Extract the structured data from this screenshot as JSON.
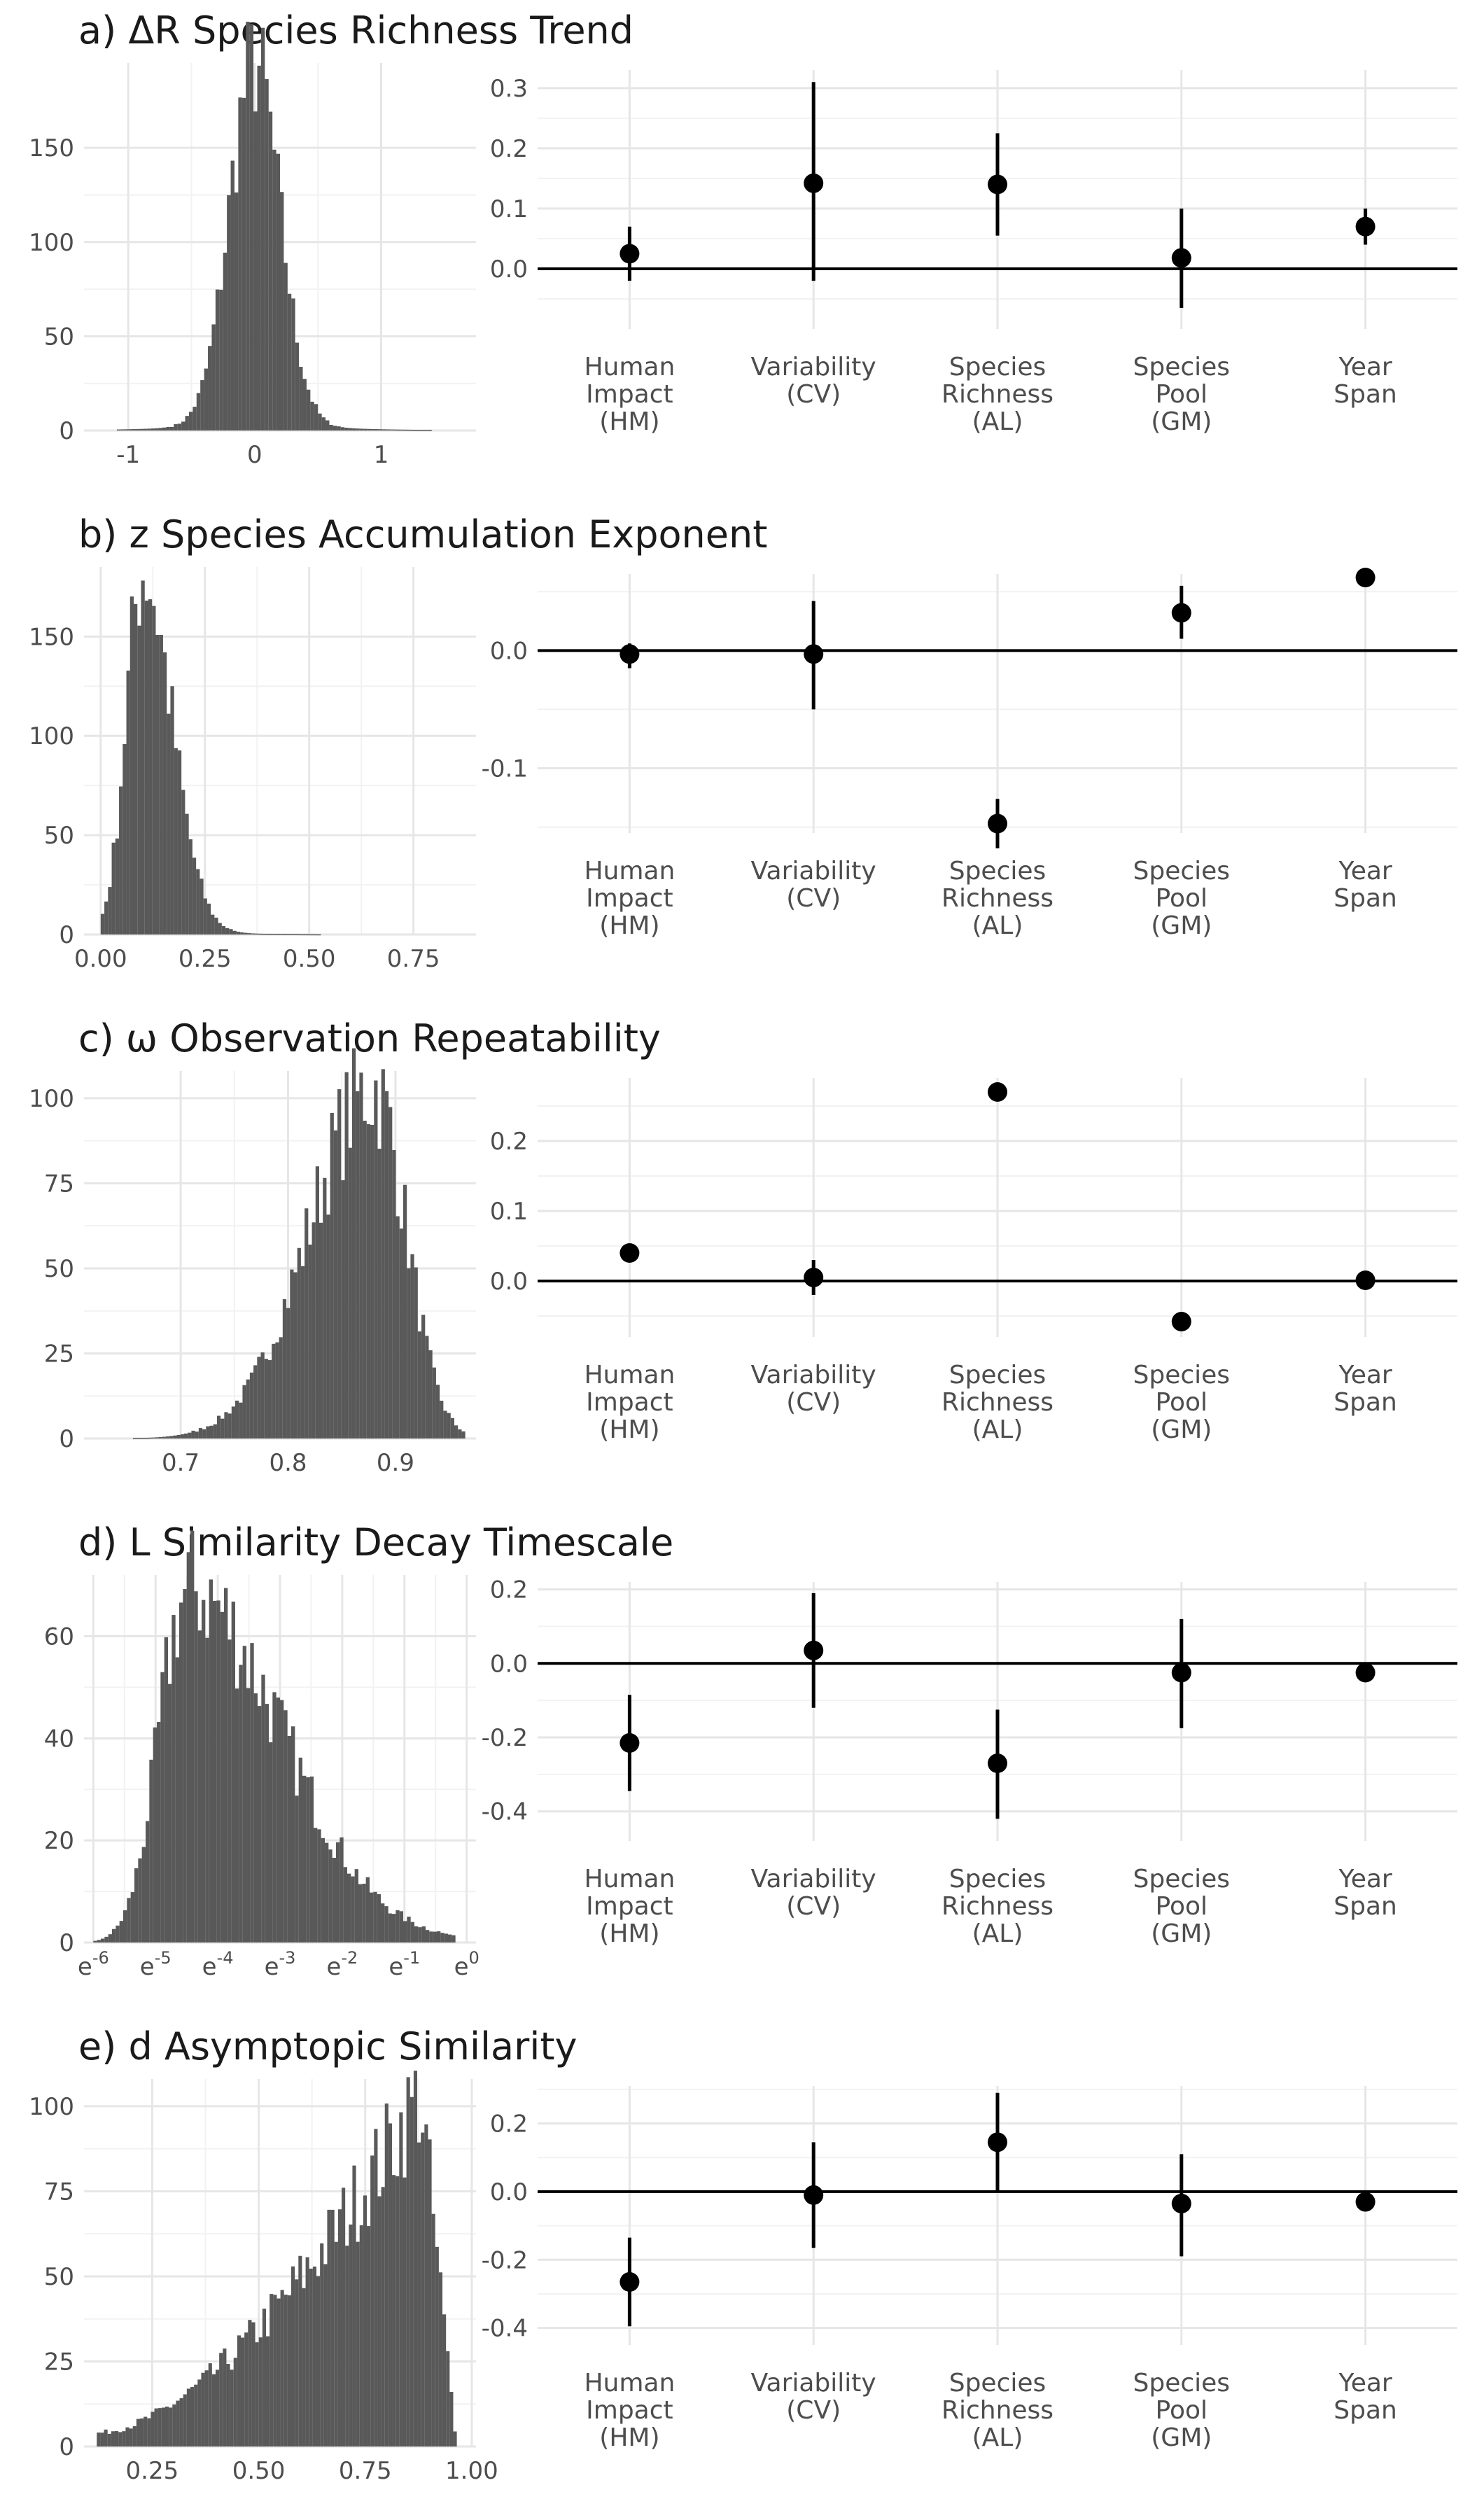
{
  "chart_data": [
    {
      "type": "histogram",
      "panel": "a",
      "title": "a) ΔR Species Richness Trend",
      "histogram": {
        "xlim": [
          -1.35,
          1.75
        ],
        "ylim": [
          0,
          195
        ],
        "x_ticks": [
          {
            "v": -1,
            "label": "-1"
          },
          {
            "v": 0,
            "label": "0"
          },
          {
            "v": 1,
            "label": "1"
          }
        ],
        "y_ticks": [
          {
            "v": 0,
            "label": "0"
          },
          {
            "v": 50,
            "label": "50"
          },
          {
            "v": 100,
            "label": "100"
          },
          {
            "v": 150,
            "label": "150"
          }
        ],
        "bin_start": -1.3,
        "bin_end": 1.7,
        "bins": 100,
        "shape": {
          "kind": "peak",
          "center": 0,
          "spread": 0.2,
          "left_tail": 1.1,
          "right_tail": 1.4,
          "peak": 190
        }
      },
      "effects": {
        "ylim": [
          -0.1,
          0.33
        ],
        "y_ticks": [
          {
            "v": 0,
            "label": "0.0"
          },
          {
            "v": 0.1,
            "label": "0.1"
          },
          {
            "v": 0.2,
            "label": "0.2"
          },
          {
            "v": 0.3,
            "label": "0.3"
          }
        ],
        "categories": [
          "Human Impact (HM)",
          "Variability (CV)",
          "Species Richness (AL)",
          "Species Pool (GM)",
          "Year Span"
        ],
        "estimates": [
          0.025,
          0.142,
          0.14,
          0.018,
          0.07
        ],
        "lower": [
          -0.02,
          -0.02,
          0.055,
          -0.065,
          0.04
        ],
        "upper": [
          0.07,
          0.31,
          0.225,
          0.1,
          0.1
        ]
      }
    },
    {
      "type": "histogram",
      "panel": "b",
      "title": "b) z Species Accumulation Exponent",
      "histogram": {
        "xlim": [
          -0.04,
          0.9
        ],
        "ylim": [
          0,
          185
        ],
        "x_ticks": [
          {
            "v": 0,
            "label": "0.00"
          },
          {
            "v": 0.25,
            "label": "0.25"
          },
          {
            "v": 0.5,
            "label": "0.50"
          },
          {
            "v": 0.75,
            "label": "0.75"
          }
        ],
        "y_ticks": [
          {
            "v": 0,
            "label": "0"
          },
          {
            "v": 50,
            "label": "50"
          },
          {
            "v": 100,
            "label": "100"
          },
          {
            "v": 150,
            "label": "150"
          }
        ],
        "bin_start": 0.0,
        "bin_end": 0.88,
        "bins": 100,
        "shape": {
          "kind": "skew-right",
          "center": 0.1,
          "spread_left": 0.04,
          "spread_right": 0.07,
          "tail_end": 0.88,
          "peak": 180
        }
      },
      "effects": {
        "ylim": [
          -0.155,
          0.065
        ],
        "y_ticks": [
          {
            "v": -0.1,
            "label": "-0.1"
          },
          {
            "v": 0,
            "label": "0.0"
          }
        ],
        "categories": [
          "Human Impact (HM)",
          "Variability (CV)",
          "Species Richness (AL)",
          "Species Pool (GM)",
          "Year Span"
        ],
        "estimates": [
          -0.003,
          -0.003,
          -0.147,
          0.032,
          0.062
        ],
        "lower": [
          -0.015,
          -0.05,
          -0.168,
          0.01,
          0.058
        ],
        "upper": [
          0.006,
          0.042,
          -0.126,
          0.055,
          0.066
        ]
      }
    },
    {
      "type": "histogram",
      "panel": "c",
      "title": "c) ω Observation Repeatability",
      "histogram": {
        "xlim": [
          0.61,
          0.975
        ],
        "ylim": [
          0,
          108
        ],
        "x_ticks": [
          {
            "v": 0.7,
            "label": "0.7"
          },
          {
            "v": 0.8,
            "label": "0.8"
          },
          {
            "v": 0.9,
            "label": "0.9"
          }
        ],
        "y_ticks": [
          {
            "v": 0,
            "label": "0"
          },
          {
            "v": 25,
            "label": "25"
          },
          {
            "v": 50,
            "label": "50"
          },
          {
            "v": 75,
            "label": "75"
          },
          {
            "v": 100,
            "label": "100"
          }
        ],
        "bin_start": 0.625,
        "bin_end": 0.965,
        "bins": 100,
        "shape": {
          "kind": "skew-left",
          "center": 0.88,
          "spread_left": 0.06,
          "spread_right": 0.03,
          "tail_start": 0.625,
          "peak": 103
        }
      },
      "effects": {
        "ylim": [
          -0.08,
          0.29
        ],
        "y_ticks": [
          {
            "v": 0,
            "label": "0.0"
          },
          {
            "v": 0.1,
            "label": "0.1"
          },
          {
            "v": 0.2,
            "label": "0.2"
          }
        ],
        "categories": [
          "Human Impact (HM)",
          "Variability (CV)",
          "Species Richness (AL)",
          "Species Pool (GM)",
          "Year Span"
        ],
        "estimates": [
          0.04,
          0.005,
          0.27,
          -0.058,
          0.001
        ],
        "lower": [
          0.035,
          -0.02,
          0.265,
          -0.062,
          -0.002
        ],
        "upper": [
          0.045,
          0.03,
          0.275,
          -0.054,
          0.004
        ]
      }
    },
    {
      "type": "histogram",
      "panel": "d",
      "title": "d) L Similarity Decay Timescale",
      "histogram": {
        "xlim": [
          -6.15,
          0.15
        ],
        "ylim": [
          0,
          72
        ],
        "x_ticks": [
          {
            "v": -6,
            "base": "e",
            "exp": "-6"
          },
          {
            "v": -5,
            "base": "e",
            "exp": "-5"
          },
          {
            "v": -4,
            "base": "e",
            "exp": "-4"
          },
          {
            "v": -3,
            "base": "e",
            "exp": "-3"
          },
          {
            "v": -2,
            "base": "e",
            "exp": "-2"
          },
          {
            "v": -1,
            "base": "e",
            "exp": "-1"
          },
          {
            "v": 0,
            "base": "e",
            "exp": "0"
          }
        ],
        "y_ticks": [
          {
            "v": 0,
            "label": "0"
          },
          {
            "v": 20,
            "label": "20"
          },
          {
            "v": 40,
            "label": "40"
          },
          {
            "v": 60,
            "label": "60"
          }
        ],
        "bin_start": -6.0,
        "bin_end": 0.0,
        "bins": 100,
        "shape": {
          "kind": "skew-right",
          "center": -4.5,
          "spread_left": 0.45,
          "spread_right": 1.5,
          "tail_end": -0.2,
          "peak": 68
        }
      },
      "effects": {
        "ylim": [
          -0.48,
          0.22
        ],
        "y_ticks": [
          {
            "v": -0.4,
            "label": "-0.4"
          },
          {
            "v": -0.2,
            "label": "-0.2"
          },
          {
            "v": 0,
            "label": "0.0"
          },
          {
            "v": 0.2,
            "label": "0.2"
          }
        ],
        "categories": [
          "Human Impact (HM)",
          "Variability (CV)",
          "Species Richness (AL)",
          "Species Pool (GM)",
          "Year Span"
        ],
        "estimates": [
          -0.215,
          0.035,
          -0.27,
          -0.025,
          -0.025
        ],
        "lower": [
          -0.345,
          -0.12,
          -0.42,
          -0.175,
          -0.035
        ],
        "upper": [
          -0.085,
          0.19,
          -0.125,
          0.12,
          -0.015
        ]
      }
    },
    {
      "type": "histogram",
      "panel": "e",
      "title": "e) d Asymptopic Similarity",
      "histogram": {
        "xlim": [
          0.09,
          1.01
        ],
        "ylim": [
          0,
          108
        ],
        "x_ticks": [
          {
            "v": 0.25,
            "label": "0.25"
          },
          {
            "v": 0.5,
            "label": "0.50"
          },
          {
            "v": 0.75,
            "label": "0.75"
          },
          {
            "v": 1.0,
            "label": "1.00"
          }
        ],
        "y_ticks": [
          {
            "v": 0,
            "label": "0"
          },
          {
            "v": 25,
            "label": "25"
          },
          {
            "v": 50,
            "label": "50"
          },
          {
            "v": 75,
            "label": "75"
          },
          {
            "v": 100,
            "label": "100"
          }
        ],
        "bin_start": 0.12,
        "bin_end": 0.965,
        "bins": 100,
        "shape": {
          "kind": "ramp",
          "start": 0.12,
          "peak_at": 0.88,
          "end": 0.965,
          "start_height": 4,
          "peak": 104
        }
      },
      "effects": {
        "ylim": [
          -0.45,
          0.31
        ],
        "y_ticks": [
          {
            "v": -0.4,
            "label": "-0.4"
          },
          {
            "v": -0.2,
            "label": "-0.2"
          },
          {
            "v": 0,
            "label": "0.0"
          },
          {
            "v": 0.2,
            "label": "0.2"
          }
        ],
        "categories": [
          "Human Impact (HM)",
          "Variability (CV)",
          "Species Richness (AL)",
          "Species Pool (GM)",
          "Year Span"
        ],
        "estimates": [
          -0.265,
          -0.01,
          0.145,
          -0.035,
          -0.03
        ],
        "lower": [
          -0.395,
          -0.165,
          0.0,
          -0.19,
          -0.04
        ],
        "upper": [
          -0.135,
          0.145,
          0.29,
          0.11,
          -0.02
        ]
      }
    }
  ],
  "category_labels": [
    [
      "Human",
      "Impact",
      "(HM)"
    ],
    [
      "Variability",
      "(CV)"
    ],
    [
      "Species",
      "Richness",
      "(AL)"
    ],
    [
      "Species",
      "Pool",
      "(GM)"
    ],
    [
      "Year",
      "Span"
    ]
  ]
}
